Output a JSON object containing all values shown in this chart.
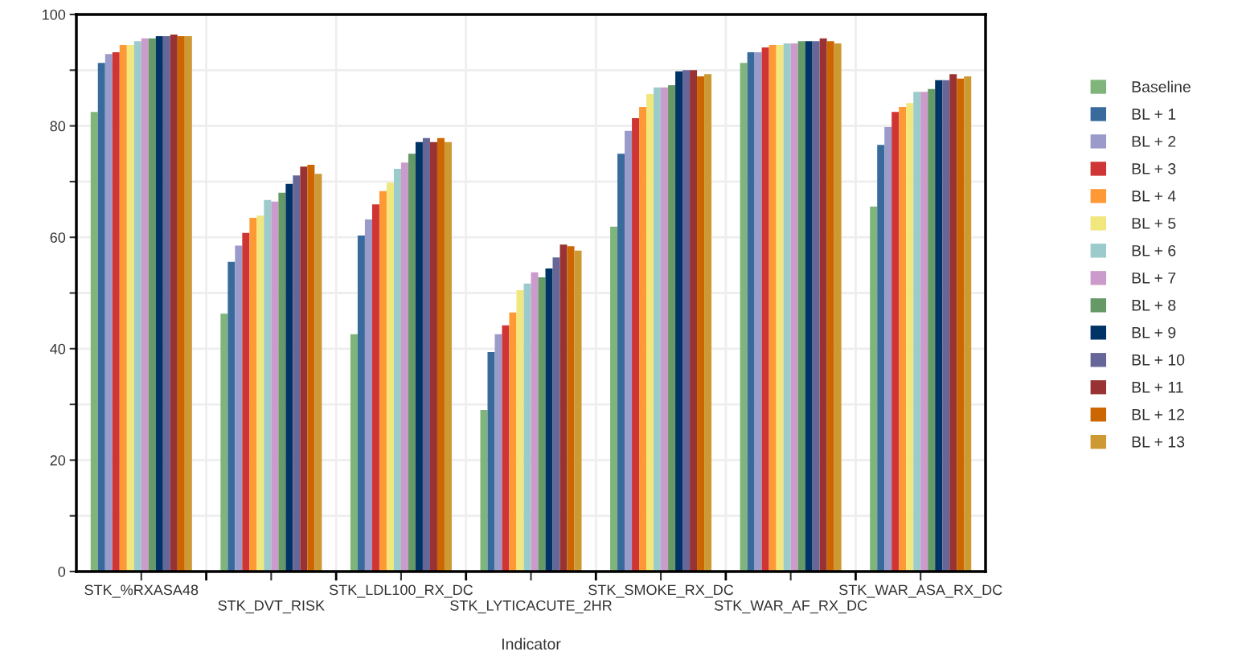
{
  "chart_data": {
    "type": "bar",
    "xlabel": "Indicator",
    "categories": [
      "STK_%RXASA48",
      "STK_DVT_RISK",
      "STK_LDL100_RX_DC",
      "STK_LYTICACUTE_2HR",
      "STK_SMOKE_RX_DC",
      "STK_WAR_AF_RX_DC",
      "STK_WAR_ASA_RX_DC"
    ],
    "series": [
      {
        "name": "Baseline",
        "color": "#7fb57a",
        "values": [
          82.5,
          46.3,
          42.6,
          29.0,
          61.9,
          91.3,
          65.5
        ]
      },
      {
        "name": "BL + 1",
        "color": "#386b9c",
        "values": [
          91.3,
          55.6,
          60.3,
          39.4,
          75.0,
          93.2,
          76.6
        ]
      },
      {
        "name": "BL + 2",
        "color": "#9b9bcb",
        "values": [
          92.9,
          58.5,
          63.2,
          42.6,
          79.1,
          93.2,
          79.8
        ]
      },
      {
        "name": "BL + 3",
        "color": "#cf3535",
        "values": [
          93.2,
          60.8,
          65.9,
          44.2,
          81.4,
          94.1,
          82.5
        ]
      },
      {
        "name": "BL + 4",
        "color": "#fe9936",
        "values": [
          94.5,
          63.5,
          68.3,
          46.5,
          83.4,
          94.5,
          83.4
        ]
      },
      {
        "name": "BL + 5",
        "color": "#f1e77c",
        "values": [
          94.5,
          63.9,
          69.8,
          50.5,
          85.7,
          94.5,
          84.1
        ]
      },
      {
        "name": "BL + 6",
        "color": "#9bcbcb",
        "values": [
          95.2,
          66.7,
          72.3,
          51.7,
          86.9,
          94.8,
          86.1
        ]
      },
      {
        "name": "BL + 7",
        "color": "#cb9bcb",
        "values": [
          95.7,
          66.4,
          73.4,
          53.7,
          86.9,
          94.8,
          86.1
        ]
      },
      {
        "name": "BL + 8",
        "color": "#659966",
        "values": [
          95.7,
          68.0,
          75.0,
          52.8,
          87.3,
          95.2,
          86.6
        ]
      },
      {
        "name": "BL + 9",
        "color": "#003366",
        "values": [
          96.1,
          69.6,
          77.1,
          54.4,
          89.8,
          95.2,
          88.2
        ]
      },
      {
        "name": "BL + 10",
        "color": "#666699",
        "values": [
          96.1,
          71.1,
          77.8,
          56.4,
          90.0,
          95.2,
          88.2
        ]
      },
      {
        "name": "BL + 11",
        "color": "#993333",
        "values": [
          96.4,
          72.7,
          77.1,
          58.7,
          90.0,
          95.7,
          89.3
        ]
      },
      {
        "name": "BL + 12",
        "color": "#cc6600",
        "values": [
          96.1,
          73.0,
          77.8,
          58.4,
          88.9,
          95.2,
          88.5
        ]
      },
      {
        "name": "BL + 13",
        "color": "#cc9933",
        "values": [
          96.1,
          71.4,
          77.1,
          57.6,
          89.3,
          94.8,
          88.9
        ]
      }
    ],
    "ylim": [
      0,
      100
    ],
    "yticks": [
      0,
      {
        "value": 10,
        "label": null
      },
      20,
      {
        "value": 30,
        "label": null
      },
      40,
      {
        "value": 50,
        "label": null
      },
      60,
      {
        "value": 70,
        "label": null
      },
      80,
      {
        "value": 90,
        "label": null
      },
      100
    ],
    "grid": true,
    "legend": "right"
  }
}
